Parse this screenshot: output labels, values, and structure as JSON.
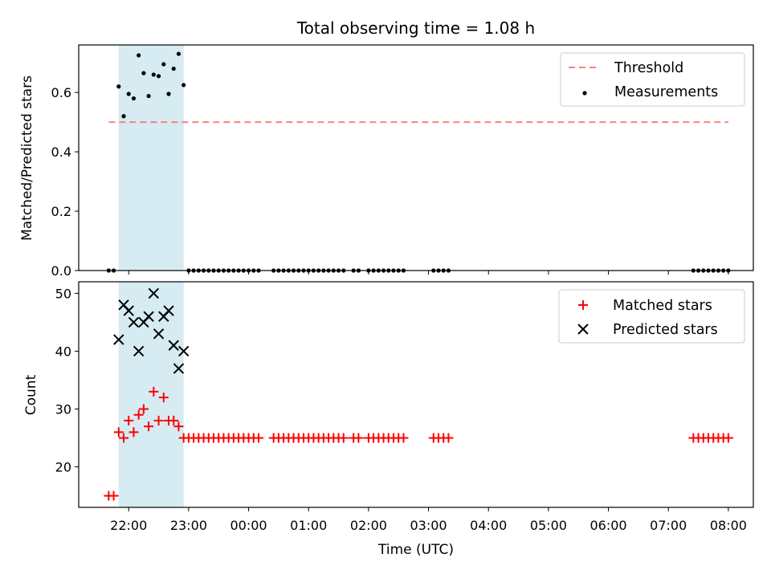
{
  "title": "Total observing time = 1.08 h",
  "chart_data": [
    {
      "type": "scatter",
      "ylabel": "Matched/Predicted stars",
      "xlabel": "",
      "ylim": [
        0,
        0.76
      ],
      "yticks": [
        0.0,
        0.2,
        0.4,
        0.6
      ],
      "ytick_labels": [
        "0.0",
        "0.2",
        "0.4",
        "0.6"
      ],
      "threshold": {
        "name": "Threshold",
        "value": 0.5,
        "x_start": "21:40",
        "x_end": "08:00",
        "color": "#ff7f7f"
      },
      "highlight": {
        "x_start": "21:50",
        "x_end": "22:55",
        "color": "#add8e6"
      },
      "series": [
        {
          "name": "Measurements",
          "color": "#000000",
          "points": [
            [
              "21:40",
              0
            ],
            [
              "21:45",
              0
            ],
            [
              "21:50",
              0.62
            ],
            [
              "21:55",
              0.52
            ],
            [
              "22:00",
              0.595
            ],
            [
              "22:05",
              0.58
            ],
            [
              "22:10",
              0.725
            ],
            [
              "22:15",
              0.665
            ],
            [
              "22:20",
              0.588
            ],
            [
              "22:25",
              0.66
            ],
            [
              "22:30",
              0.655
            ],
            [
              "22:35",
              0.695
            ],
            [
              "22:40",
              0.595
            ],
            [
              "22:45",
              0.68
            ],
            [
              "22:50",
              0.73
            ],
            [
              "22:55",
              0.625
            ],
            [
              "23:00",
              0
            ],
            [
              "23:05",
              0
            ],
            [
              "23:10",
              0
            ],
            [
              "23:15",
              0
            ],
            [
              "23:20",
              0
            ],
            [
              "23:25",
              0
            ],
            [
              "23:30",
              0
            ],
            [
              "23:35",
              0
            ],
            [
              "23:40",
              0
            ],
            [
              "23:45",
              0
            ],
            [
              "23:50",
              0
            ],
            [
              "23:55",
              0
            ],
            [
              "00:00",
              0
            ],
            [
              "00:05",
              0
            ],
            [
              "00:10",
              0
            ],
            [
              "00:25",
              0
            ],
            [
              "00:30",
              0
            ],
            [
              "00:35",
              0
            ],
            [
              "00:40",
              0
            ],
            [
              "00:45",
              0
            ],
            [
              "00:50",
              0
            ],
            [
              "00:55",
              0
            ],
            [
              "01:00",
              0
            ],
            [
              "01:05",
              0
            ],
            [
              "01:10",
              0
            ],
            [
              "01:15",
              0
            ],
            [
              "01:20",
              0
            ],
            [
              "01:25",
              0
            ],
            [
              "01:30",
              0
            ],
            [
              "01:35",
              0
            ],
            [
              "01:45",
              0
            ],
            [
              "01:50",
              0
            ],
            [
              "02:00",
              0
            ],
            [
              "02:05",
              0
            ],
            [
              "02:10",
              0
            ],
            [
              "02:15",
              0
            ],
            [
              "02:20",
              0
            ],
            [
              "02:25",
              0
            ],
            [
              "02:30",
              0
            ],
            [
              "02:35",
              0
            ],
            [
              "03:05",
              0
            ],
            [
              "03:10",
              0
            ],
            [
              "03:15",
              0
            ],
            [
              "03:20",
              0
            ],
            [
              "07:25",
              0
            ],
            [
              "07:30",
              0
            ],
            [
              "07:35",
              0
            ],
            [
              "07:40",
              0
            ],
            [
              "07:45",
              0
            ],
            [
              "07:50",
              0
            ],
            [
              "07:55",
              0
            ],
            [
              "08:00",
              0
            ]
          ]
        }
      ],
      "legend": {
        "placement": "top-right",
        "entries": [
          "Threshold",
          "Measurements"
        ]
      }
    },
    {
      "type": "scatter",
      "ylabel": "Count",
      "xlabel": "Time (UTC)",
      "ylim": [
        13,
        52
      ],
      "yticks": [
        20,
        30,
        40,
        50
      ],
      "ytick_labels": [
        "20",
        "30",
        "40",
        "50"
      ],
      "highlight": {
        "x_start": "21:50",
        "x_end": "22:55",
        "color": "#add8e6"
      },
      "series": [
        {
          "name": "Matched stars",
          "marker": "plus",
          "color": "#ff0000",
          "points": [
            [
              "21:40",
              15
            ],
            [
              "21:45",
              15
            ],
            [
              "21:50",
              26
            ],
            [
              "21:55",
              25
            ],
            [
              "22:00",
              28
            ],
            [
              "22:05",
              26
            ],
            [
              "22:10",
              29
            ],
            [
              "22:15",
              30
            ],
            [
              "22:20",
              27
            ],
            [
              "22:25",
              33
            ],
            [
              "22:30",
              28
            ],
            [
              "22:35",
              32
            ],
            [
              "22:40",
              28
            ],
            [
              "22:45",
              28
            ],
            [
              "22:50",
              27
            ],
            [
              "22:55",
              25
            ],
            [
              "23:00",
              25
            ],
            [
              "23:05",
              25
            ],
            [
              "23:10",
              25
            ],
            [
              "23:15",
              25
            ],
            [
              "23:20",
              25
            ],
            [
              "23:25",
              25
            ],
            [
              "23:30",
              25
            ],
            [
              "23:35",
              25
            ],
            [
              "23:40",
              25
            ],
            [
              "23:45",
              25
            ],
            [
              "23:50",
              25
            ],
            [
              "23:55",
              25
            ],
            [
              "00:00",
              25
            ],
            [
              "00:05",
              25
            ],
            [
              "00:10",
              25
            ],
            [
              "00:25",
              25
            ],
            [
              "00:30",
              25
            ],
            [
              "00:35",
              25
            ],
            [
              "00:40",
              25
            ],
            [
              "00:45",
              25
            ],
            [
              "00:50",
              25
            ],
            [
              "00:55",
              25
            ],
            [
              "01:00",
              25
            ],
            [
              "01:05",
              25
            ],
            [
              "01:10",
              25
            ],
            [
              "01:15",
              25
            ],
            [
              "01:20",
              25
            ],
            [
              "01:25",
              25
            ],
            [
              "01:30",
              25
            ],
            [
              "01:35",
              25
            ],
            [
              "01:45",
              25
            ],
            [
              "01:50",
              25
            ],
            [
              "02:00",
              25
            ],
            [
              "02:05",
              25
            ],
            [
              "02:10",
              25
            ],
            [
              "02:15",
              25
            ],
            [
              "02:20",
              25
            ],
            [
              "02:25",
              25
            ],
            [
              "02:30",
              25
            ],
            [
              "02:35",
              25
            ],
            [
              "03:05",
              25
            ],
            [
              "03:10",
              25
            ],
            [
              "03:15",
              25
            ],
            [
              "03:20",
              25
            ],
            [
              "07:25",
              25
            ],
            [
              "07:30",
              25
            ],
            [
              "07:35",
              25
            ],
            [
              "07:40",
              25
            ],
            [
              "07:45",
              25
            ],
            [
              "07:50",
              25
            ],
            [
              "07:55",
              25
            ],
            [
              "08:00",
              25
            ]
          ]
        },
        {
          "name": "Predicted stars",
          "marker": "x",
          "color": "#000000",
          "points": [
            [
              "21:50",
              42
            ],
            [
              "21:55",
              48
            ],
            [
              "22:00",
              47
            ],
            [
              "22:05",
              45
            ],
            [
              "22:10",
              40
            ],
            [
              "22:15",
              45
            ],
            [
              "22:20",
              46
            ],
            [
              "22:25",
              50
            ],
            [
              "22:30",
              43
            ],
            [
              "22:35",
              46
            ],
            [
              "22:40",
              47
            ],
            [
              "22:45",
              41
            ],
            [
              "22:50",
              37
            ],
            [
              "22:55",
              40
            ]
          ]
        }
      ],
      "legend": {
        "placement": "top-right",
        "entries": [
          "Matched stars",
          "Predicted stars"
        ]
      }
    }
  ],
  "x_axis": {
    "start": "21:10",
    "end": "08:25",
    "tick_labels": [
      "22:00",
      "23:00",
      "00:00",
      "01:00",
      "02:00",
      "03:00",
      "04:00",
      "05:00",
      "06:00",
      "07:00",
      "08:00"
    ]
  }
}
